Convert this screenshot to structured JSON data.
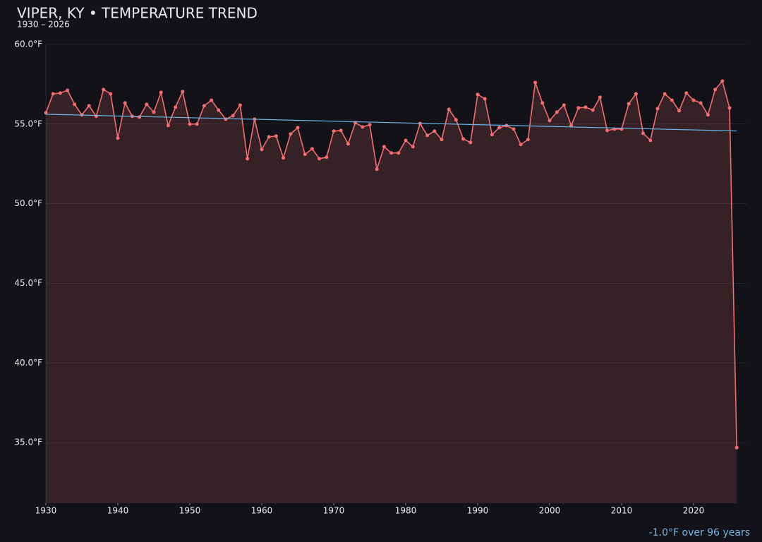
{
  "chart_data": {
    "type": "line",
    "title": "VIPER, KY • TEMPERATURE TREND",
    "subtitle": "1930 – 2026",
    "annotation": "-1.0°F over 96 years",
    "x": [
      1930,
      1931,
      1932,
      1933,
      1934,
      1935,
      1936,
      1937,
      1938,
      1939,
      1940,
      1941,
      1942,
      1943,
      1944,
      1945,
      1946,
      1947,
      1948,
      1949,
      1950,
      1951,
      1952,
      1953,
      1954,
      1955,
      1956,
      1957,
      1958,
      1959,
      1960,
      1961,
      1962,
      1963,
      1964,
      1965,
      1966,
      1967,
      1968,
      1969,
      1970,
      1971,
      1972,
      1973,
      1974,
      1975,
      1976,
      1977,
      1978,
      1979,
      1980,
      1981,
      1982,
      1983,
      1984,
      1985,
      1986,
      1987,
      1988,
      1989,
      1990,
      1991,
      1992,
      1993,
      1994,
      1995,
      1996,
      1997,
      1998,
      1999,
      2000,
      2001,
      2002,
      2003,
      2004,
      2005,
      2006,
      2007,
      2008,
      2009,
      2010,
      2011,
      2012,
      2013,
      2014,
      2015,
      2016,
      2017,
      2018,
      2019,
      2020,
      2021,
      2022,
      2023,
      2024,
      2025,
      2026
    ],
    "series": [
      {
        "color": "#f26d6d",
        "values": [
          55.71,
          56.9,
          56.95,
          57.12,
          56.24,
          55.58,
          56.15,
          55.49,
          57.17,
          56.9,
          54.12,
          56.33,
          55.49,
          55.44,
          56.24,
          55.75,
          56.99,
          54.91,
          56.06,
          57.04,
          55.0,
          55.0,
          56.15,
          56.5,
          55.88,
          55.31,
          55.53,
          56.19,
          52.83,
          55.31,
          53.41,
          54.2,
          54.25,
          52.88,
          54.38,
          54.78,
          53.1,
          53.45,
          52.83,
          52.92,
          54.56,
          54.6,
          53.76,
          55.09,
          54.82,
          54.96,
          52.17,
          53.58,
          53.19,
          53.19,
          53.98,
          53.58,
          55.04,
          54.29,
          54.56,
          54.03,
          55.93,
          55.27,
          54.07,
          53.85,
          56.86,
          56.59,
          54.34,
          54.78,
          54.91,
          54.69,
          53.72,
          54.03,
          57.61,
          56.33,
          55.22,
          55.75,
          56.19,
          54.91,
          56.02,
          56.06,
          55.88,
          56.68,
          54.6,
          54.69,
          54.69,
          56.28,
          56.9,
          54.42,
          53.98,
          55.97,
          56.9,
          56.5,
          55.84,
          56.95,
          56.5,
          56.33,
          55.58,
          57.17,
          57.7,
          56.02,
          34.69
        ]
      }
    ],
    "trend": {
      "color": "#6cb6e8",
      "x": [
        1930,
        2026
      ],
      "values": [
        55.62,
        54.57
      ]
    },
    "xlim": [
      1930,
      2026.5
    ],
    "ylim": [
      31.2,
      60
    ],
    "xticks": [
      1930,
      1940,
      1950,
      1960,
      1970,
      1980,
      1990,
      2000,
      2010,
      2020
    ],
    "yticks": [
      {
        "value": 35,
        "label": "35.0°F"
      },
      {
        "value": 40,
        "label": "40.0°F"
      },
      {
        "value": 45,
        "label": "45.0°F"
      },
      {
        "value": 50,
        "label": "50.0°F"
      },
      {
        "value": 55,
        "label": "55.0°F"
      },
      {
        "value": 60,
        "label": "60.0°F"
      }
    ],
    "grid": true
  }
}
